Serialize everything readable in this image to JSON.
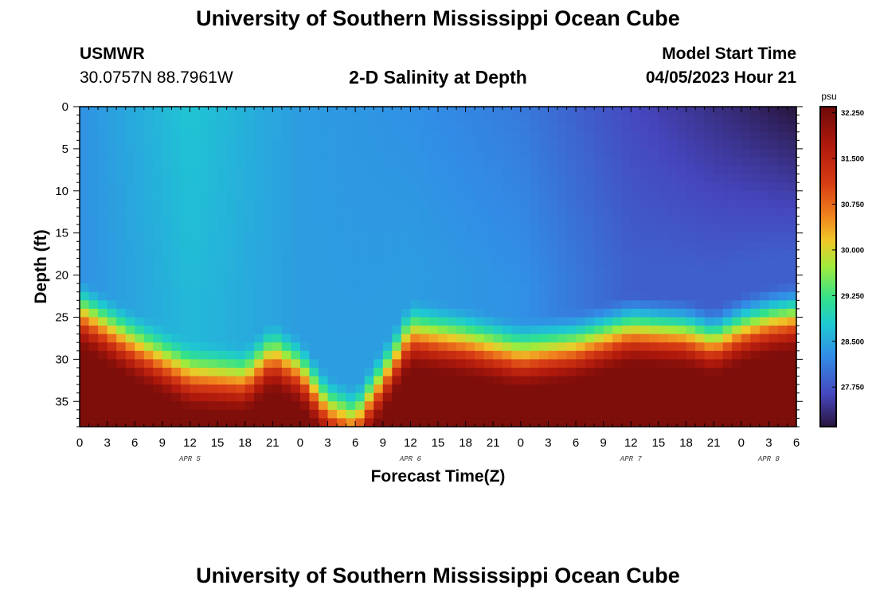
{
  "header": {
    "title": "University of Southern Mississippi Ocean Cube",
    "station_code": "USMWR",
    "station_coords": "30.0757N  88.7961W",
    "plot_title": "2-D Salinity at Depth",
    "start_label": "Model Start Time",
    "start_value": "04/05/2023 Hour 21"
  },
  "footer": {
    "title": "University of Southern Mississippi Ocean Cube"
  },
  "chart_data": {
    "type": "heatmap",
    "title": "2-D Salinity at Depth",
    "xlabel": "Forecast Time(Z)",
    "ylabel": "Depth (ft)",
    "x_tick_labels": [
      "0",
      "3",
      "6",
      "9",
      "12",
      "15",
      "18",
      "21",
      "0",
      "3",
      "6",
      "9",
      "12",
      "15",
      "18",
      "21",
      "0",
      "3",
      "6",
      "9",
      "12",
      "15",
      "18",
      "21",
      "0",
      "3",
      "6"
    ],
    "date_labels": [
      {
        "label": "APR 5",
        "at_tick": 4
      },
      {
        "label": "APR 6",
        "at_tick": 12
      },
      {
        "label": "APR 7",
        "at_tick": 20
      },
      {
        "label": "APR 8",
        "at_tick": 25
      }
    ],
    "y_ticks": [
      0,
      5,
      10,
      15,
      20,
      25,
      30,
      35
    ],
    "ylim": [
      0,
      38
    ],
    "colorbar": {
      "unit": "psu",
      "ticks": [
        "32.250",
        "31.500",
        "30.750",
        "30.000",
        "29.250",
        "28.500",
        "27.750"
      ],
      "range": [
        27.1,
        32.35
      ]
    },
    "surface_salinity": [
      {
        "hour": 0,
        "value": 28.3
      },
      {
        "hour": 12,
        "value": 28.75
      },
      {
        "hour": 24,
        "value": 28.4
      },
      {
        "hour": 36,
        "value": 28.3
      },
      {
        "hour": 48,
        "value": 28.1
      },
      {
        "hour": 60,
        "value": 27.65
      },
      {
        "hour": 72,
        "value": 27.3
      },
      {
        "hour": 78,
        "value": 27.1
      }
    ],
    "mixed_layer_salinity": [
      {
        "hour": 0,
        "value": 28.3
      },
      {
        "hour": 12,
        "value": 28.65
      },
      {
        "hour": 24,
        "value": 28.4
      },
      {
        "hour": 36,
        "value": 28.4
      },
      {
        "hour": 48,
        "value": 28.3
      },
      {
        "hour": 60,
        "value": 27.85
      },
      {
        "hour": 72,
        "value": 27.85
      },
      {
        "hour": 78,
        "value": 27.85
      }
    ],
    "bottom_salinity": 32.2,
    "halocline_depth_ft": [
      {
        "hour": 0,
        "value": 20
      },
      {
        "hour": 6,
        "value": 24
      },
      {
        "hour": 12,
        "value": 27.5
      },
      {
        "hour": 18,
        "value": 28
      },
      {
        "hour": 21,
        "value": 25
      },
      {
        "hour": 24,
        "value": 27
      },
      {
        "hour": 27,
        "value": 31.5
      },
      {
        "hour": 30,
        "value": 33
      },
      {
        "hour": 33,
        "value": 28
      },
      {
        "hour": 36,
        "value": 22.5
      },
      {
        "hour": 42,
        "value": 23.5
      },
      {
        "hour": 48,
        "value": 25
      },
      {
        "hour": 54,
        "value": 24
      },
      {
        "hour": 60,
        "value": 22
      },
      {
        "hour": 66,
        "value": 22.5
      },
      {
        "hour": 69,
        "value": 23.5
      },
      {
        "hour": 72,
        "value": 22
      },
      {
        "hour": 75,
        "value": 21
      },
      {
        "hour": 78,
        "value": 20.5
      }
    ],
    "halocline_thickness_ft": 9
  }
}
